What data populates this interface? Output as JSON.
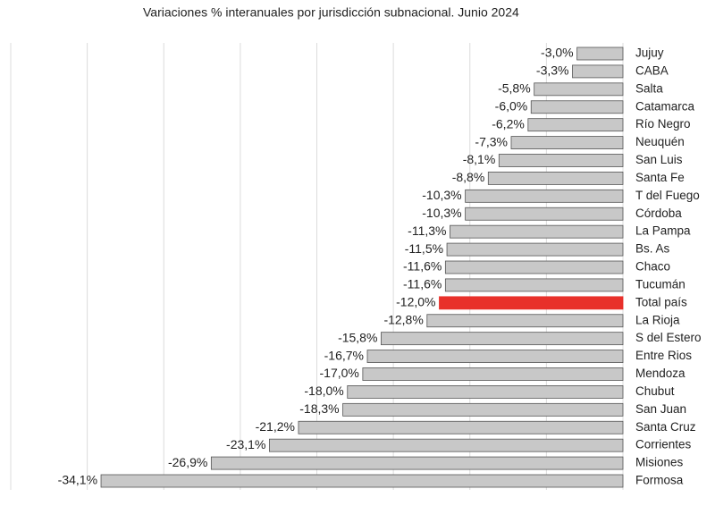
{
  "chart_data": {
    "type": "bar",
    "orientation": "horizontal",
    "title": "Variaciones % interanuales por jurisdicción subnacional. Junio 2024",
    "categories": [
      "Jujuy",
      "CABA",
      "Salta",
      "Catamarca",
      "Río Negro",
      "Neuquén",
      "San Luis",
      "Santa Fe",
      "T del Fuego",
      "Córdoba",
      "La Pampa",
      "Bs. As",
      "Chaco",
      "Tucumán",
      "Total país",
      "La Rioja",
      "S del Estero",
      "Entre Rios",
      "Mendoza",
      "Chubut",
      "San Juan",
      "Santa Cruz",
      "Corrientes",
      "Misiones",
      "Formosa"
    ],
    "values": [
      -3.0,
      -3.3,
      -5.8,
      -6.0,
      -6.2,
      -7.3,
      -8.1,
      -8.8,
      -10.3,
      -10.3,
      -11.3,
      -11.5,
      -11.6,
      -11.6,
      -12.0,
      -12.8,
      -15.8,
      -16.7,
      -17.0,
      -18.0,
      -18.3,
      -21.2,
      -23.1,
      -26.9,
      -34.1
    ],
    "value_labels": [
      "-3,0%",
      "-3,3%",
      "-5,8%",
      "-6,0%",
      "-6,2%",
      "-7,3%",
      "-8,1%",
      "-8,8%",
      "-10,3%",
      "-10,3%",
      "-11,3%",
      "-11,5%",
      "-11,6%",
      "-11,6%",
      "-12,0%",
      "-12,8%",
      "-15,8%",
      "-16,7%",
      "-17,0%",
      "-18,0%",
      "-18,3%",
      "-21,2%",
      "-23,1%",
      "-26,9%",
      "-34,1%"
    ],
    "colors": [
      "#c8c8c8",
      "#c8c8c8",
      "#c8c8c8",
      "#c8c8c8",
      "#c8c8c8",
      "#c8c8c8",
      "#c8c8c8",
      "#c8c8c8",
      "#c8c8c8",
      "#c8c8c8",
      "#c8c8c8",
      "#c8c8c8",
      "#c8c8c8",
      "#c8c8c8",
      "#e8302a",
      "#c8c8c8",
      "#c8c8c8",
      "#c8c8c8",
      "#c8c8c8",
      "#c8c8c8",
      "#c8c8c8",
      "#c8c8c8",
      "#c8c8c8",
      "#c8c8c8",
      "#c8c8c8"
    ],
    "xlim": [
      -40,
      0
    ],
    "xticks": [
      -40,
      -35,
      -30,
      -25,
      -20,
      -15,
      -10,
      -5,
      0
    ],
    "grid": true
  }
}
